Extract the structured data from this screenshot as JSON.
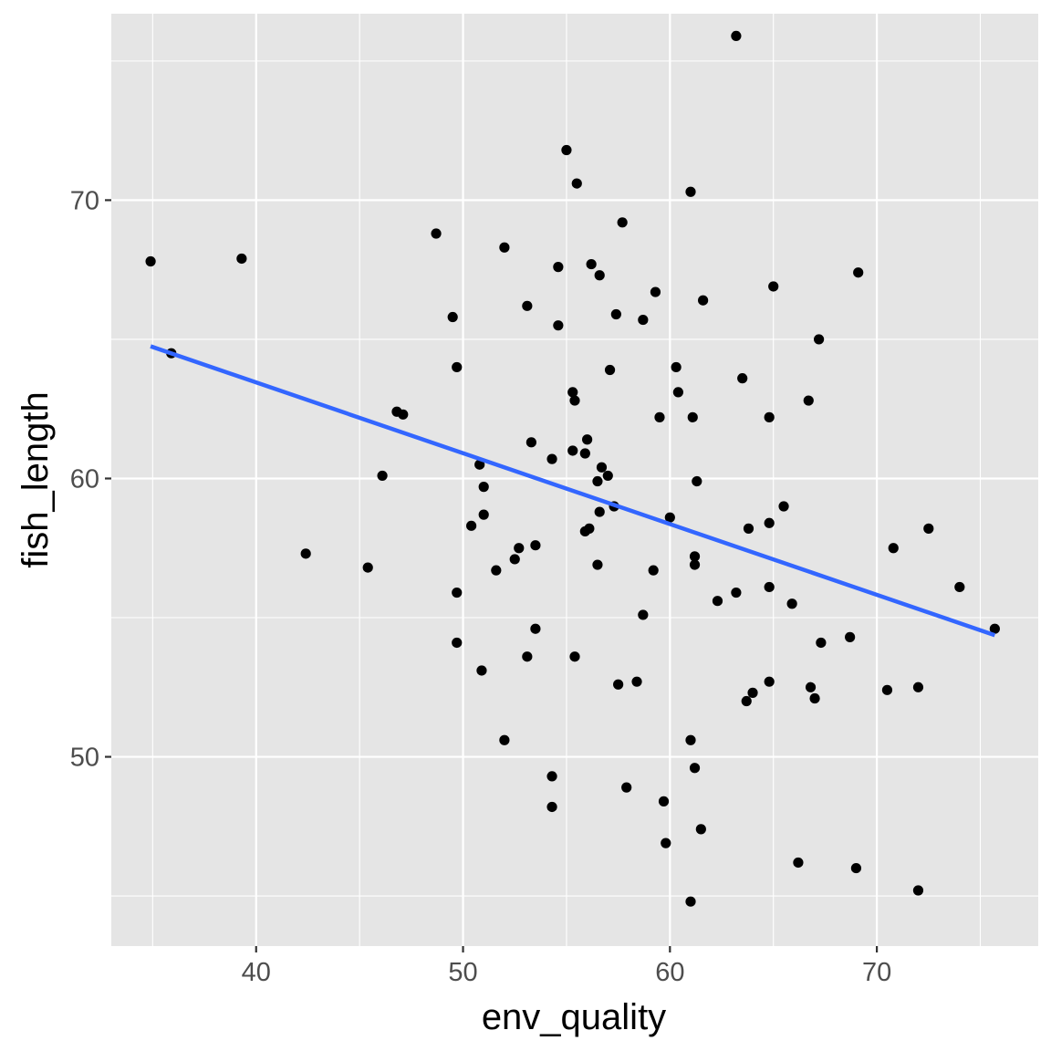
{
  "chart_data": {
    "type": "scatter",
    "title": "",
    "xlabel": "env_quality",
    "ylabel": "fish_length",
    "xlim": [
      33.0,
      77.8
    ],
    "ylim": [
      43.2,
      76.7
    ],
    "x_ticks": [
      40,
      50,
      60,
      70
    ],
    "y_ticks": [
      50,
      60,
      70
    ],
    "x_tick_labels": [
      "40",
      "50",
      "60",
      "70"
    ],
    "y_tick_labels": [
      "50",
      "60",
      "70"
    ],
    "grid": true,
    "legend": "none",
    "colors": {
      "panel_background": "#e5e5e5",
      "grid": "#ffffff",
      "points": "#000000",
      "trend_line": "#3366ff",
      "tick_label": "#4d4d4d",
      "axis_title": "#000000"
    },
    "series": [
      {
        "type": "scatter",
        "points": [
          [
            63.2,
            75.9
          ],
          [
            55.0,
            71.8
          ],
          [
            55.5,
            70.6
          ],
          [
            61.0,
            70.3
          ],
          [
            57.7,
            69.2
          ],
          [
            48.7,
            68.8
          ],
          [
            52.0,
            68.3
          ],
          [
            39.3,
            67.9
          ],
          [
            34.9,
            67.8
          ],
          [
            56.2,
            67.7
          ],
          [
            54.6,
            67.6
          ],
          [
            56.6,
            67.3
          ],
          [
            69.1,
            67.4
          ],
          [
            65.0,
            66.9
          ],
          [
            59.3,
            66.7
          ],
          [
            61.6,
            66.4
          ],
          [
            53.1,
            66.2
          ],
          [
            57.4,
            65.9
          ],
          [
            58.7,
            65.7
          ],
          [
            49.5,
            65.8
          ],
          [
            54.6,
            65.5
          ],
          [
            67.2,
            65.0
          ],
          [
            35.9,
            64.5
          ],
          [
            49.7,
            64.0
          ],
          [
            57.1,
            63.9
          ],
          [
            60.3,
            64.0
          ],
          [
            63.5,
            63.6
          ],
          [
            55.3,
            63.1
          ],
          [
            60.4,
            63.1
          ],
          [
            55.4,
            62.8
          ],
          [
            66.7,
            62.8
          ],
          [
            46.8,
            62.4
          ],
          [
            47.1,
            62.3
          ],
          [
            59.5,
            62.2
          ],
          [
            61.1,
            62.2
          ],
          [
            64.8,
            62.2
          ],
          [
            53.3,
            61.3
          ],
          [
            56.0,
            61.4
          ],
          [
            55.3,
            61.0
          ],
          [
            55.9,
            60.9
          ],
          [
            54.3,
            60.7
          ],
          [
            50.8,
            60.5
          ],
          [
            56.7,
            60.4
          ],
          [
            46.1,
            60.1
          ],
          [
            57.0,
            60.1
          ],
          [
            56.5,
            59.9
          ],
          [
            61.3,
            59.9
          ],
          [
            51.0,
            59.7
          ],
          [
            57.3,
            59.0
          ],
          [
            65.5,
            59.0
          ],
          [
            56.6,
            58.8
          ],
          [
            51.0,
            58.7
          ],
          [
            60.0,
            58.6
          ],
          [
            50.4,
            58.3
          ],
          [
            64.8,
            58.4
          ],
          [
            56.1,
            58.2
          ],
          [
            55.9,
            58.1
          ],
          [
            63.8,
            58.2
          ],
          [
            72.5,
            58.2
          ],
          [
            53.5,
            57.6
          ],
          [
            52.7,
            57.5
          ],
          [
            70.8,
            57.5
          ],
          [
            61.2,
            57.2
          ],
          [
            52.5,
            57.1
          ],
          [
            56.5,
            56.9
          ],
          [
            61.2,
            56.9
          ],
          [
            42.4,
            57.3
          ],
          [
            45.4,
            56.8
          ],
          [
            51.6,
            56.7
          ],
          [
            59.2,
            56.7
          ],
          [
            64.8,
            56.1
          ],
          [
            74.0,
            56.1
          ],
          [
            49.7,
            55.9
          ],
          [
            63.2,
            55.9
          ],
          [
            62.3,
            55.6
          ],
          [
            65.9,
            55.5
          ],
          [
            58.7,
            55.1
          ],
          [
            53.5,
            54.6
          ],
          [
            75.7,
            54.6
          ],
          [
            68.7,
            54.3
          ],
          [
            49.7,
            54.1
          ],
          [
            67.3,
            54.1
          ],
          [
            53.1,
            53.6
          ],
          [
            55.4,
            53.6
          ],
          [
            50.9,
            53.1
          ],
          [
            58.4,
            52.7
          ],
          [
            57.5,
            52.6
          ],
          [
            64.8,
            52.7
          ],
          [
            66.8,
            52.5
          ],
          [
            72.0,
            52.5
          ],
          [
            70.5,
            52.4
          ],
          [
            64.0,
            52.3
          ],
          [
            67.0,
            52.1
          ],
          [
            63.7,
            52.0
          ],
          [
            52.0,
            50.6
          ],
          [
            61.0,
            50.6
          ],
          [
            61.2,
            49.6
          ],
          [
            54.3,
            49.3
          ],
          [
            57.9,
            48.9
          ],
          [
            59.7,
            48.4
          ],
          [
            54.3,
            48.2
          ],
          [
            61.5,
            47.4
          ],
          [
            59.8,
            46.9
          ],
          [
            66.2,
            46.2
          ],
          [
            69.0,
            46.0
          ],
          [
            72.0,
            45.2
          ],
          [
            61.0,
            44.8
          ]
        ]
      },
      {
        "type": "line",
        "method": "lm",
        "points": [
          [
            34.9,
            64.75
          ],
          [
            75.7,
            54.37
          ]
        ]
      }
    ]
  }
}
